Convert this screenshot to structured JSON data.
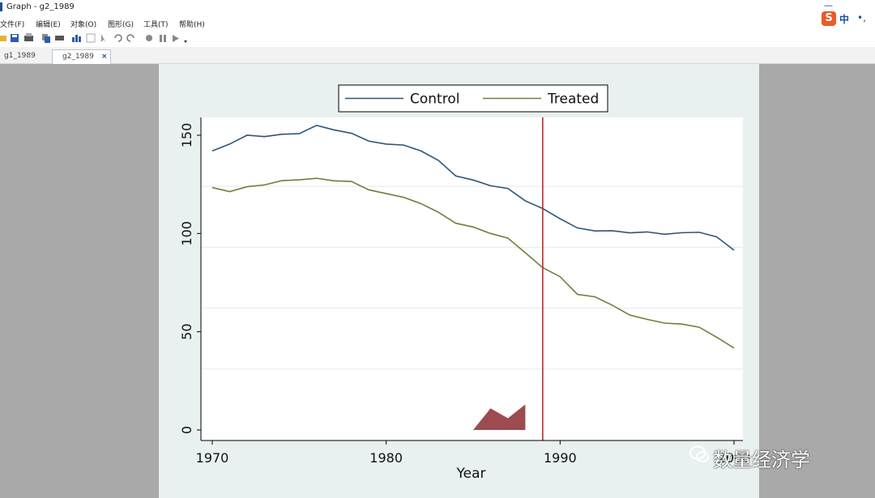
{
  "window": {
    "title": "Graph - g2_1989"
  },
  "menu": [
    {
      "id": "file",
      "label": "文件(F)"
    },
    {
      "id": "edit",
      "label": "编辑(E)"
    },
    {
      "id": "object",
      "label": "对象(O)"
    },
    {
      "id": "graphics",
      "label": "图形(G)"
    },
    {
      "id": "tools",
      "label": "工具(T)"
    },
    {
      "id": "help",
      "label": "帮助(H)"
    }
  ],
  "ime": {
    "logo": "S",
    "lang": "中",
    "dots": "•,"
  },
  "toolbar_icons": [
    "open-icon",
    "save-icon",
    "print-icon",
    "copy-icon",
    "rename-icon",
    "graph-editor-icon",
    "data-icon",
    "pointer-icon",
    "undo-icon",
    "redo-icon",
    "record-icon",
    "pause-icon",
    "play-icon"
  ],
  "tabs": [
    {
      "label": "g1_1989",
      "active": false
    },
    {
      "label": "g2_1989",
      "active": true,
      "close": "×"
    }
  ],
  "watermark": "数量经济学",
  "chart_data": {
    "type": "line",
    "xlabel": "Year",
    "ylabel": "",
    "xlim": [
      1970,
      2000
    ],
    "ylim": [
      0,
      160
    ],
    "xticks": [
      1970,
      1980,
      1990,
      2000
    ],
    "xtick_labels": [
      "1970",
      "1980",
      "1990",
      "2000"
    ],
    "yticks": [
      0,
      50,
      100,
      150
    ],
    "legend_position": "top",
    "gridlines": [
      31,
      62,
      93,
      124
    ],
    "vline": {
      "x": 1989,
      "color": "#c0282b"
    },
    "series": [
      {
        "name": "Control",
        "color": "#2f5578",
        "x": [
          1970,
          1971,
          1972,
          1973,
          1974,
          1975,
          1976,
          1977,
          1978,
          1979,
          1980,
          1981,
          1982,
          1983,
          1984,
          1985,
          1986,
          1987,
          1988,
          1989,
          1990,
          1991,
          1992,
          1993,
          1994,
          1995,
          1996,
          1997,
          1998,
          1999,
          2000
        ],
        "values": [
          142,
          145.5,
          150,
          149.3,
          150.5,
          150.8,
          155,
          152.7,
          151,
          147,
          145.5,
          145,
          142,
          137.2,
          129.3,
          127.2,
          124.3,
          122.9,
          116.6,
          112.7,
          107.5,
          102.8,
          101.3,
          101.4,
          100.3,
          100.8,
          99.6,
          100.4,
          100.6,
          98.3,
          91.5
        ]
      },
      {
        "name": "Treated",
        "color": "#6e7f3b",
        "x": [
          1970,
          1971,
          1972,
          1973,
          1974,
          1975,
          1976,
          1977,
          1978,
          1979,
          1980,
          1981,
          1982,
          1983,
          1984,
          1985,
          1986,
          1987,
          1988,
          1989,
          1990,
          1991,
          1992,
          1993,
          1994,
          1995,
          1996,
          1997,
          1998,
          1999,
          2000
        ],
        "values": [
          123.4,
          121.3,
          123.8,
          124.7,
          126.9,
          127.3,
          128.1,
          126.8,
          126.5,
          122.2,
          120.3,
          118.4,
          115.2,
          110.8,
          105.2,
          103.3,
          100,
          97.6,
          90.2,
          82.6,
          78,
          69,
          67.8,
          63.5,
          58.5,
          56.3,
          54.4,
          53.9,
          52.3,
          47.2,
          41.7
        ]
      }
    ],
    "hump": {
      "color": "#9c4b51",
      "x": [
        1985,
        1986,
        1987,
        1988,
        1988,
        1985
      ],
      "values": [
        0,
        11,
        6,
        13,
        0,
        0
      ]
    }
  }
}
